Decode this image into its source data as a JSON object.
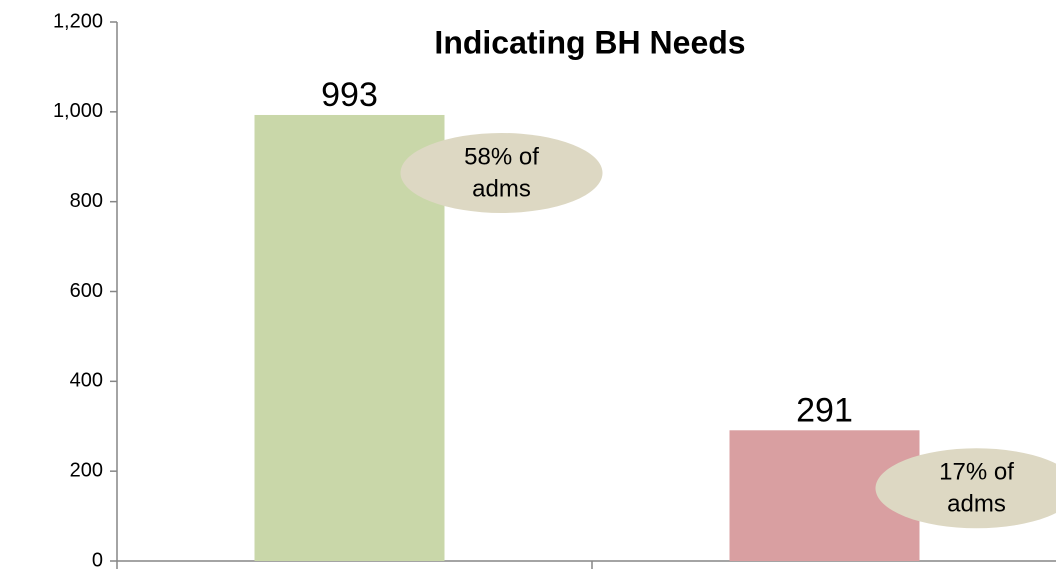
{
  "chart_data": {
    "type": "bar",
    "title": "Indicating BH Needs",
    "categories": [
      null,
      null
    ],
    "values": [
      993,
      291
    ],
    "colors": [
      "#c9d7a9",
      "#d99fa1"
    ],
    "annotations": [
      [
        "58% of",
        "adms"
      ],
      [
        "17% of",
        "adms"
      ]
    ],
    "annotation_color": "#ddd8c3",
    "ylim": [
      0,
      1200
    ],
    "yticks": [
      0,
      200,
      400,
      600,
      800,
      {
        "value": 1000,
        "label": "1,000"
      },
      {
        "value": 1200,
        "label": "1,200"
      }
    ],
    "grid": false
  }
}
